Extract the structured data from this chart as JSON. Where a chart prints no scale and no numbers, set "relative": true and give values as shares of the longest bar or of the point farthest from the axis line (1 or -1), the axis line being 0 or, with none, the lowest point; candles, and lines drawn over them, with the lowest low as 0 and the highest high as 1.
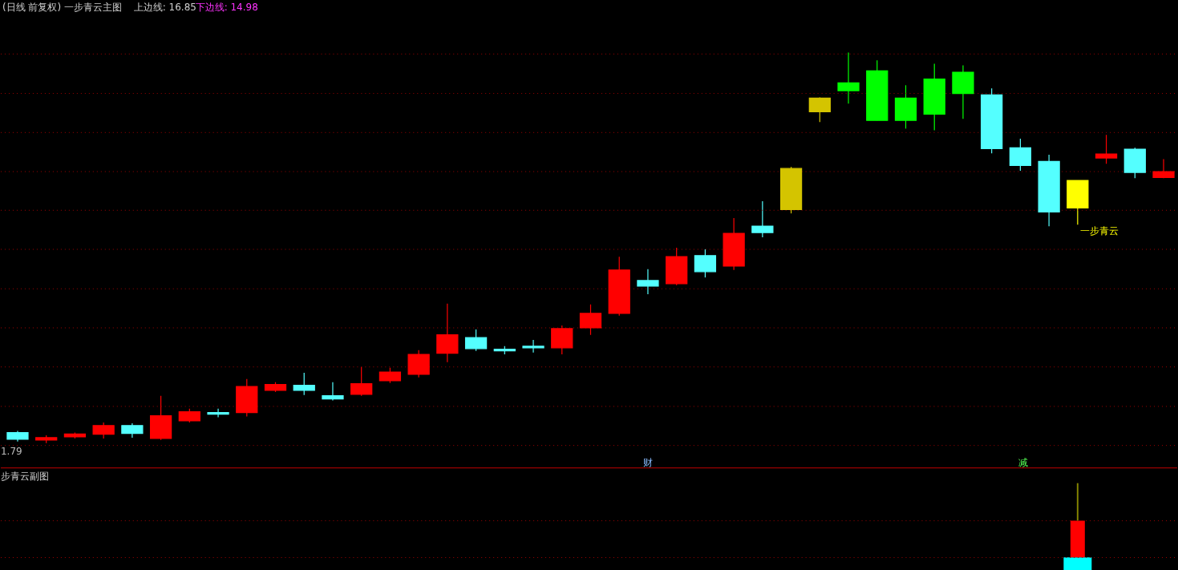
{
  "chart_data": [
    {
      "type": "candlestick",
      "title": "(日线 前复权) 一步青云主图",
      "relative": true,
      "ref_lines": [
        {
          "axis": "y",
          "value": 0.996,
          "color": "#a00000",
          "line_style": "dotted"
        },
        {
          "axis": "y",
          "value": 0.895,
          "color": "#a00000",
          "line_style": "dotted"
        },
        {
          "axis": "y",
          "value": 0.795,
          "color": "#a00000",
          "line_style": "dotted"
        },
        {
          "axis": "y",
          "value": 0.695,
          "color": "#a00000",
          "line_style": "dotted"
        },
        {
          "axis": "y",
          "value": 0.596,
          "color": "#a00000",
          "line_style": "dotted"
        },
        {
          "axis": "y",
          "value": 0.496,
          "color": "#a00000",
          "line_style": "dotted"
        },
        {
          "axis": "y",
          "value": 0.395,
          "color": "#a00000",
          "line_style": "dotted"
        },
        {
          "axis": "y",
          "value": 0.295,
          "color": "#a00000",
          "line_style": "dotted"
        },
        {
          "axis": "y",
          "value": 0.195,
          "color": "#a00000",
          "line_style": "dotted"
        },
        {
          "axis": "y",
          "value": 0.094,
          "color": "#a00000",
          "line_style": "dotted"
        },
        {
          "axis": "y",
          "value": -0.006,
          "color": "#a00000",
          "line_style": "dotted"
        }
      ],
      "annotations": [
        "上边线: 16.85",
        "下边线: 14.98",
        "1.79",
        "一步青云",
        "财",
        "减"
      ],
      "categories": [
        null,
        null,
        null,
        null,
        null,
        null,
        null,
        null,
        null,
        null,
        null,
        null,
        null,
        null,
        null,
        null,
        null,
        null,
        null,
        null,
        null,
        null,
        null,
        null,
        null,
        null,
        null,
        null,
        null,
        null,
        null,
        null,
        null,
        null,
        null,
        null,
        null,
        null,
        null,
        null,
        null
      ],
      "ohlc": [
        [
          0.027,
          0.031,
          0.004,
          0.01
        ],
        [
          0.008,
          0.02,
          0,
          0.014
        ],
        [
          0.016,
          0.027,
          0.012,
          0.023
        ],
        [
          0.023,
          0.053,
          0.012,
          0.045
        ],
        [
          0.045,
          0.051,
          0.014,
          0.025
        ],
        [
          0.012,
          0.121,
          0.008,
          0.07
        ],
        [
          0.057,
          0.088,
          0.053,
          0.08
        ],
        [
          0.078,
          0.088,
          0.066,
          0.074
        ],
        [
          0.078,
          0.164,
          0.068,
          0.145
        ],
        [
          0.135,
          0.156,
          0.131,
          0.15
        ],
        [
          0.148,
          0.18,
          0.123,
          0.135
        ],
        [
          0.121,
          0.156,
          0.109,
          0.113
        ],
        [
          0.125,
          0.195,
          0.121,
          0.152
        ],
        [
          0.16,
          0.193,
          0.154,
          0.182
        ],
        [
          0.176,
          0.238,
          0.168,
          0.227
        ],
        [
          0.23,
          0.357,
          0.207,
          0.277
        ],
        [
          0.27,
          0.291,
          0.236,
          0.242
        ],
        [
          0.24,
          0.248,
          0.227,
          0.236
        ],
        [
          0.248,
          0.264,
          0.232,
          0.244
        ],
        [
          0.244,
          0.301,
          0.227,
          0.293
        ],
        [
          0.295,
          0.355,
          0.277,
          0.332
        ],
        [
          0.332,
          0.477,
          0.326,
          0.443
        ],
        [
          0.416,
          0.445,
          0.381,
          0.402
        ],
        [
          0.408,
          0.5,
          0.404,
          0.477
        ],
        [
          0.48,
          0.496,
          0.424,
          0.439
        ],
        [
          0.453,
          0.576,
          0.443,
          0.537
        ],
        [
          0.555,
          0.619,
          0.527,
          0.539
        ],
        [
          0.598,
          0.707,
          0.588,
          0.703
        ],
        [
          0.848,
          0.885,
          0.822,
          0.883
        ],
        [
          0.902,
          1,
          0.869,
          0.922
        ],
        [
          0.953,
          0.98,
          0.826,
          0.826
        ],
        [
          0.826,
          0.916,
          0.805,
          0.883
        ],
        [
          0.842,
          0.971,
          0.801,
          0.932
        ],
        [
          0.949,
          0.967,
          0.83,
          0.895
        ],
        [
          0.891,
          0.908,
          0.742,
          0.754
        ],
        [
          0.756,
          0.779,
          0.697,
          0.711
        ],
        [
          0.721,
          0.738,
          0.555,
          0.592
        ],
        [
          0.672,
          0.672,
          0.559,
          0.602
        ],
        [
          0.73,
          0.789,
          0.715,
          0.74
        ],
        [
          0.752,
          0.756,
          0.678,
          0.693
        ],
        [
          0.68,
          0.727,
          0.678,
          0.695
        ]
      ],
      "colors": [
        "#54ffff",
        "#ff0000",
        "#ff0000",
        "#ff0000",
        "#54ffff",
        "#ff0000",
        "#ff0000",
        "#54ffff",
        "#ff0000",
        "#ff0000",
        "#54ffff",
        "#54ffff",
        "#ff0000",
        "#ff0000",
        "#ff0000",
        "#ff0000",
        "#54ffff",
        "#54ffff",
        "#54ffff",
        "#ff0000",
        "#ff0000",
        "#ff0000",
        "#54ffff",
        "#ff0000",
        "#54ffff",
        "#ff0000",
        "#54ffff",
        "#d4c400",
        "#d4c400",
        "#00ff00",
        "#00ff00",
        "#00ff00",
        "#00ff00",
        "#00ff00",
        "#54ffff",
        "#54ffff",
        "#54ffff",
        "#ffff00",
        "#ff0000",
        "#54ffff",
        "#ff0000"
      ]
    },
    {
      "type": "bar",
      "title": "步青云副图",
      "relative": true,
      "stacked": true,
      "ref_lines": [
        {
          "axis": "y",
          "value": 0.569,
          "color": "#a00000",
          "line_style": "dotted"
        },
        {
          "axis": "y",
          "value": 0.147,
          "color": "#a00000",
          "line_style": "dotted"
        }
      ],
      "categories": [
        null,
        null,
        null,
        null,
        null,
        null,
        null,
        null,
        null,
        null,
        null,
        null,
        null,
        null,
        null,
        null,
        null,
        null,
        null,
        null,
        null,
        null,
        null,
        null,
        null,
        null,
        null,
        null,
        null,
        null,
        null,
        null,
        null,
        null,
        null,
        null,
        null,
        null,
        null,
        null,
        null
      ],
      "series": [
        {
          "color": "#00ffff",
          "values": [
            null,
            null,
            null,
            null,
            null,
            null,
            null,
            null,
            null,
            null,
            null,
            null,
            null,
            null,
            null,
            null,
            null,
            null,
            null,
            null,
            null,
            null,
            null,
            null,
            null,
            null,
            null,
            null,
            null,
            null,
            null,
            null,
            null,
            null,
            null,
            null,
            null,
            0.15,
            null,
            null,
            null
          ]
        },
        {
          "color": "#ff0000",
          "values": [
            null,
            null,
            null,
            null,
            null,
            null,
            null,
            null,
            null,
            null,
            null,
            null,
            null,
            null,
            null,
            null,
            null,
            null,
            null,
            null,
            null,
            null,
            null,
            null,
            null,
            null,
            null,
            null,
            null,
            null,
            null,
            null,
            null,
            null,
            null,
            null,
            null,
            0.42,
            null,
            null,
            null
          ]
        },
        {
          "color": "#808000",
          "values": [
            null,
            null,
            null,
            null,
            null,
            null,
            null,
            null,
            null,
            null,
            null,
            null,
            null,
            null,
            null,
            null,
            null,
            null,
            null,
            null,
            null,
            null,
            null,
            null,
            null,
            null,
            null,
            null,
            null,
            null,
            null,
            null,
            null,
            null,
            null,
            null,
            null,
            0.43,
            null,
            null,
            null
          ]
        }
      ]
    }
  ]
}
